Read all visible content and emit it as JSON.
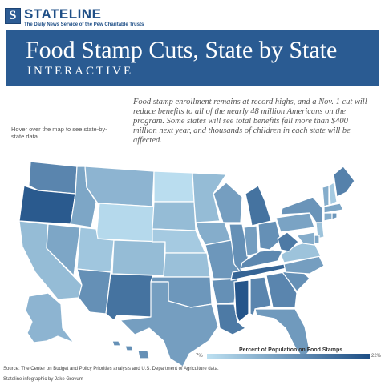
{
  "logo": {
    "initial": "S",
    "name": "STATELINE",
    "tagline": "The Daily News Service of the Pew Charitable Trusts"
  },
  "banner": {
    "title": "Food Stamp Cuts, State by State",
    "subtitle": "INTERACTIVE"
  },
  "hover_hint": "Hover over the map to see state-by-state data.",
  "intro": "Food stamp enrollment remains at record highs, and a Nov. 1 cut will reduce benefits to all of the nearly 48 million Americans on the program. Some states will see total benefits fall more than $400 million next year, and thousands of children in each state will be affected.",
  "legend": {
    "title": "Percent of Population on Food Stamps",
    "min_label": "7%",
    "max_label": "22%",
    "color_low": "#bde0f1",
    "color_high": "#1d4e85"
  },
  "source": "Source: The Center on Budget and Policy Priorities analysis and U.S. Department of Agriculture data.",
  "credit": "Stateline infographic by Jake Grovum",
  "colors": {
    "banner": "#2a5b92",
    "brand": "#1f4f87"
  },
  "states": [
    {
      "id": "WA",
      "level": 0.62
    },
    {
      "id": "OR",
      "level": 0.92
    },
    {
      "id": "CA",
      "level": 0.25
    },
    {
      "id": "NV",
      "level": 0.4
    },
    {
      "id": "ID",
      "level": 0.4
    },
    {
      "id": "MT",
      "level": 0.3
    },
    {
      "id": "WY",
      "level": 0.05
    },
    {
      "id": "UT",
      "level": 0.18
    },
    {
      "id": "CO",
      "level": 0.25
    },
    {
      "id": "AZ",
      "level": 0.55
    },
    {
      "id": "NM",
      "level": 0.75
    },
    {
      "id": "ND",
      "level": 0.02
    },
    {
      "id": "SD",
      "level": 0.25
    },
    {
      "id": "NE",
      "level": 0.15
    },
    {
      "id": "KS",
      "level": 0.22
    },
    {
      "id": "OK",
      "level": 0.5
    },
    {
      "id": "TX",
      "level": 0.45
    },
    {
      "id": "MN",
      "level": 0.25
    },
    {
      "id": "IA",
      "level": 0.35
    },
    {
      "id": "MO",
      "level": 0.5
    },
    {
      "id": "AR",
      "level": 0.55
    },
    {
      "id": "LA",
      "level": 0.7
    },
    {
      "id": "WI",
      "level": 0.45
    },
    {
      "id": "IL",
      "level": 0.55
    },
    {
      "id": "MI",
      "level": 0.75
    },
    {
      "id": "IN",
      "level": 0.45
    },
    {
      "id": "OH",
      "level": 0.55
    },
    {
      "id": "KY",
      "level": 0.6
    },
    {
      "id": "TN",
      "level": 0.85
    },
    {
      "id": "MS",
      "level": 0.95
    },
    {
      "id": "AL",
      "level": 0.62
    },
    {
      "id": "GA",
      "level": 0.62
    },
    {
      "id": "FL",
      "level": 0.48
    },
    {
      "id": "SC",
      "level": 0.55
    },
    {
      "id": "NC",
      "level": 0.45
    },
    {
      "id": "VA",
      "level": 0.2
    },
    {
      "id": "WV",
      "level": 0.7
    },
    {
      "id": "PA",
      "level": 0.42
    },
    {
      "id": "NY",
      "level": 0.52
    },
    {
      "id": "VT",
      "level": 0.35
    },
    {
      "id": "NH",
      "level": 0.15
    },
    {
      "id": "ME",
      "level": 0.65
    },
    {
      "id": "MA",
      "level": 0.4
    },
    {
      "id": "CT",
      "level": 0.35
    },
    {
      "id": "RI",
      "level": 0.5
    },
    {
      "id": "NJ",
      "level": 0.2
    },
    {
      "id": "DE",
      "level": 0.4
    },
    {
      "id": "MD",
      "level": 0.35
    },
    {
      "id": "AK",
      "level": 0.3
    },
    {
      "id": "HI",
      "level": 0.55
    }
  ]
}
